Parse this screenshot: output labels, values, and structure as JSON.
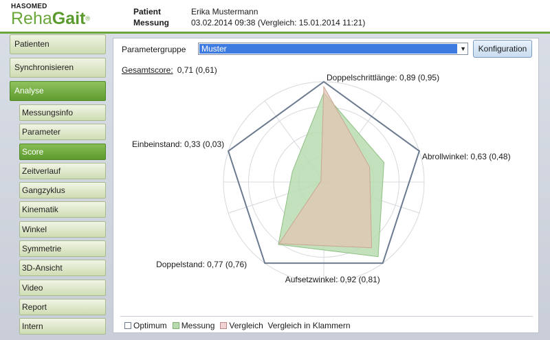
{
  "logo": {
    "brand": "HASOMED",
    "product_rehab": "Reha",
    "product_gait": "Gait",
    "reg": "®"
  },
  "header": {
    "patient_label": "Patient",
    "measurement_label": "Messung",
    "patient_value": "Erika Mustermann",
    "measurement_value": "03.02.2014 09:38 (Vergleich: 15.01.2014 11:21)"
  },
  "sidebar": {
    "top_items": [
      {
        "label": "Patienten"
      },
      {
        "label": "Synchronisieren"
      },
      {
        "label": "Analyse"
      }
    ],
    "sub_items": [
      {
        "label": "Messungsinfo"
      },
      {
        "label": "Parameter"
      },
      {
        "label": "Score"
      },
      {
        "label": "Zeitverlauf"
      },
      {
        "label": "Gangzyklus"
      },
      {
        "label": "Kinematik"
      },
      {
        "label": "Winkel"
      },
      {
        "label": "Symmetrie"
      },
      {
        "label": "3D-Ansicht"
      },
      {
        "label": "Video"
      },
      {
        "label": "Report"
      },
      {
        "label": "Intern"
      }
    ],
    "active_sub": "Score"
  },
  "main": {
    "parameter_group_label": "Parametergruppe",
    "parameter_group_value": "Muster",
    "config_button": "Konfiguration",
    "total_score_label": "Gesamtscore:",
    "total_score_value": "0,71 (0,61)"
  },
  "colors": {
    "accent_green": "#6aa63a",
    "optimum_stroke": "#6b7a8f",
    "measurement_fill": "#b8dcb0",
    "comparison_fill": "#e8c7b5",
    "select_highlight": "#3e7be0"
  },
  "chart_data": {
    "type": "radar",
    "axes": [
      {
        "name": "Einbeinstand",
        "label": "Einbeinstand: 0,33 (0,03)"
      },
      {
        "name": "Doppelschrittlänge",
        "label": "Doppelschrittlänge: 0,89 (0,95)"
      },
      {
        "name": "Abrollwinkel",
        "label": "Abrollwinkel: 0,63 (0,48)"
      },
      {
        "name": "Aufsetzwinkel",
        "label": "Aufsetzwinkel: 0,92 (0,81)"
      },
      {
        "name": "Doppelstand",
        "label": "Doppelstand: 0,77 (0,76)"
      }
    ],
    "series": [
      {
        "name": "Optimum",
        "values": [
          1,
          1,
          1,
          1,
          1
        ]
      },
      {
        "name": "Messung",
        "values": [
          0.33,
          0.89,
          0.63,
          0.92,
          0.77
        ]
      },
      {
        "name": "Vergleich",
        "values": [
          0.03,
          0.95,
          0.48,
          0.81,
          0.76
        ]
      }
    ],
    "rings": 4,
    "legend": [
      "Optimum",
      "Messung",
      "Vergleich",
      "Vergleich in Klammern"
    ],
    "legend_position": "bottom"
  }
}
